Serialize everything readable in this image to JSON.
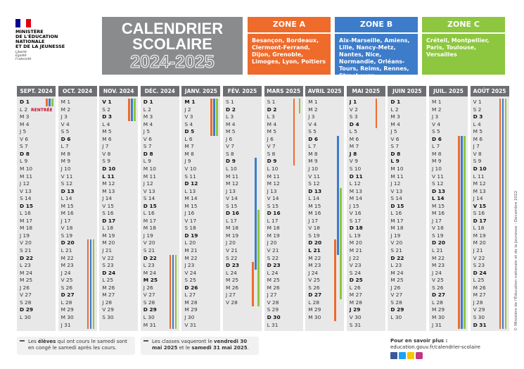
{
  "header": {
    "logo": {
      "lines": [
        "MINISTÈRE",
        "DE L'ÉDUCATION",
        "NATIONALE",
        "ET DE LA JEUNESSE"
      ],
      "motto": [
        "Liberté",
        "Égalité",
        "Fraternité"
      ]
    },
    "title": [
      "CALENDRIER",
      "SCOLAIRE"
    ],
    "year": "2024-2025"
  },
  "zones": [
    {
      "name": "ZONE A",
      "color": "#ee6b2b",
      "cities": "Besançon, Bordeaux, Clermont-Ferrand, Dijon, Grenoble, Limoges, Lyon, Poitiers"
    },
    {
      "name": "ZONE B",
      "color": "#3d7cc9",
      "cities": "Aix-Marseille, Amiens, Lille, Nancy-Metz, Nantes, Nice, Normandie, Orléans-Tours, Reims, Rennes, Strasbourg"
    },
    {
      "name": "ZONE C",
      "color": "#8dc63f",
      "cities": "Créteil, Montpellier, Paris, Toulouse, Versailles"
    }
  ],
  "months": [
    {
      "name": "SEPT. 2024",
      "days": [
        "D 1",
        {
          "text": "L 2",
          "note": "RENTRÉE"
        },
        "M 3",
        "M 4",
        "J 5",
        "V 6",
        "S 7",
        "D 8",
        "L 9",
        "M 10",
        "M 11",
        "J 12",
        "V 13",
        "S 14",
        "D 15",
        "L 16",
        "M 17",
        "M 18",
        "J 19",
        "V 20",
        "S 21",
        "D 22",
        "L 23",
        "M 24",
        "M 25",
        "J 26",
        "V 27",
        "S 28",
        "D 29",
        "L 30"
      ],
      "bars": [
        {
          "zone": 0,
          "from": 1,
          "to": 1
        },
        {
          "zone": 1,
          "from": 1,
          "to": 1
        },
        {
          "zone": 2,
          "from": 1,
          "to": 1
        }
      ]
    },
    {
      "name": "OCT. 2024",
      "days": [
        "M 1",
        "M 2",
        "J 3",
        "V 4",
        "S 5",
        "D 6",
        "L 7",
        "M 8",
        "M 9",
        "J 10",
        "V 11",
        "S 12",
        "D 13",
        "L 14",
        "M 15",
        "M 16",
        "J 17",
        "V 18",
        "S 19",
        "D 20",
        "L 21",
        "M 22",
        "M 23",
        "J 24",
        "V 25",
        "S 26",
        "D 27",
        "L 28",
        "M 29",
        "M 30",
        "J 31"
      ],
      "bars": [
        {
          "zone": 0,
          "from": 20,
          "to": 31
        },
        {
          "zone": 1,
          "from": 20,
          "to": 31
        },
        {
          "zone": 2,
          "from": 20,
          "to": 31
        }
      ]
    },
    {
      "name": "NOV. 2024",
      "days": [
        {
          "text": "V 1",
          "holiday": true
        },
        "S 2",
        "D 3",
        "L 4",
        "M 5",
        "M 6",
        "J 7",
        "V 8",
        "S 9",
        "D 10",
        {
          "text": "L 11",
          "holiday": true
        },
        "M 12",
        "M 13",
        "J 14",
        "V 15",
        "S 16",
        "D 17",
        "L 18",
        "M 19",
        "M 20",
        "J 21",
        "V 22",
        "S 23",
        "D 24",
        "L 25",
        "M 26",
        "M 27",
        "J 28",
        "V 29",
        "S 30"
      ],
      "bars": [
        {
          "zone": 0,
          "from": 1,
          "to": 3
        },
        {
          "zone": 1,
          "from": 1,
          "to": 3
        },
        {
          "zone": 2,
          "from": 1,
          "to": 3
        }
      ]
    },
    {
      "name": "DÉC. 2024",
      "days": [
        "D 1",
        "L 2",
        "M 3",
        "M 4",
        "J 5",
        "V 6",
        "S 7",
        "D 8",
        "L 9",
        "M 10",
        "M 11",
        "J 12",
        "V 13",
        "S 14",
        "D 15",
        "L 16",
        "M 17",
        "M 18",
        "J 19",
        "V 20",
        "S 21",
        "D 22",
        "L 23",
        "M 24",
        {
          "text": "M 25",
          "holiday": true
        },
        "J 26",
        "V 27",
        "S 28",
        "D 29",
        "L 30",
        "M 31"
      ],
      "bars": [
        {
          "zone": 0,
          "from": 22,
          "to": 31
        },
        {
          "zone": 1,
          "from": 22,
          "to": 31
        },
        {
          "zone": 2,
          "from": 22,
          "to": 31
        }
      ]
    },
    {
      "name": "JANV. 2025",
      "days": [
        {
          "text": "M 1",
          "holiday": true
        },
        "J 2",
        "V 3",
        "S 4",
        "D 5",
        "L 6",
        "M 7",
        "M 8",
        "J 9",
        "V 10",
        "S 11",
        "D 12",
        "L 13",
        "M 14",
        "M 15",
        "J 16",
        "V 17",
        "S 18",
        "D 19",
        "L 20",
        "M 21",
        "M 22",
        "J 23",
        "V 24",
        "S 25",
        "D 26",
        "L 27",
        "M 28",
        "M 29",
        "J 30",
        "V 31"
      ],
      "bars": [
        {
          "zone": 0,
          "from": 1,
          "to": 5
        },
        {
          "zone": 1,
          "from": 1,
          "to": 5
        },
        {
          "zone": 2,
          "from": 1,
          "to": 5
        }
      ]
    },
    {
      "name": "FÉV. 2025",
      "days": [
        "S 1",
        "D 2",
        "L 3",
        "M 4",
        "M 5",
        "J 6",
        "V 7",
        "S 8",
        "D 9",
        "L 10",
        "M 11",
        "M 12",
        "J 13",
        "V 14",
        "S 15",
        "D 16",
        "L 17",
        "M 18",
        "M 19",
        "J 20",
        "V 21",
        "S 22",
        "D 23",
        "L 24",
        "M 25",
        "M 26",
        "J 27",
        "V 28"
      ],
      "bars": [
        {
          "zone": 0,
          "from": 23,
          "to": 28
        },
        {
          "zone": 1,
          "from": 9,
          "to": 23
        },
        {
          "zone": 2,
          "from": 16,
          "to": 28
        }
      ]
    },
    {
      "name": "MARS 2025",
      "days": [
        "S 1",
        "D 2",
        "L 3",
        "M 4",
        "M 5",
        "J 6",
        "V 7",
        "S 8",
        "D 9",
        "L 10",
        "M 11",
        "M 12",
        "J 13",
        "V 14",
        "S 15",
        "D 16",
        "L 17",
        "M 18",
        "M 19",
        "J 20",
        "V 21",
        "S 22",
        "D 23",
        "L 24",
        "M 25",
        "M 26",
        "J 27",
        "V 28",
        "S 29",
        "D 30",
        "L 31"
      ],
      "bars": [
        {
          "zone": 0,
          "from": 1,
          "to": 9
        },
        {
          "zone": 2,
          "from": 1,
          "to": 2
        }
      ]
    },
    {
      "name": "AVRIL 2025",
      "days": [
        "M 1",
        "M 2",
        "J 3",
        "V 4",
        "S 5",
        "D 6",
        "L 7",
        "M 8",
        "M 9",
        "J 10",
        "V 11",
        "S 12",
        "D 13",
        "L 14",
        "M 15",
        "M 16",
        "J 17",
        "V 18",
        "S 19",
        "D 20",
        {
          "text": "L 21",
          "holiday": true
        },
        "M 22",
        "M 23",
        "J 24",
        "V 25",
        "S 26",
        "D 27",
        "L 28",
        "M 29",
        "M 30"
      ],
      "bars": [
        {
          "zone": 0,
          "from": 20,
          "to": 30
        },
        {
          "zone": 1,
          "from": 6,
          "to": 21
        },
        {
          "zone": 2,
          "from": 13,
          "to": 27
        }
      ]
    },
    {
      "name": "MAI 2025",
      "days": [
        {
          "text": "J 1",
          "holiday": true
        },
        "V 2",
        "S 3",
        "D 4",
        "L 5",
        "M 6",
        "M 7",
        {
          "text": "J 8",
          "holiday": true
        },
        "V 9",
        "S 10",
        "D 11",
        "L 12",
        "M 13",
        "M 14",
        "J 15",
        "V 16",
        "S 17",
        "D 18",
        "L 19",
        "M 20",
        "M 21",
        "J 22",
        "V 23",
        "S 24",
        "D 25",
        "L 26",
        "M 27",
        "M 28",
        {
          "text": "J 29",
          "holiday": true
        },
        "V 30",
        "S 31"
      ],
      "bars": [
        {
          "zone": 0,
          "from": 1,
          "to": 4
        }
      ]
    },
    {
      "name": "JUIN 2025",
      "days": [
        "D 1",
        "L 2",
        "M 3",
        "M 4",
        "J 5",
        "V 6",
        "S 7",
        "D 8",
        {
          "text": "L 9",
          "holiday": true
        },
        "M 10",
        "M 11",
        "J 12",
        "V 13",
        "S 14",
        "D 15",
        "L 16",
        "M 17",
        "M 18",
        "J 19",
        "V 20",
        "S 21",
        "D 22",
        "L 23",
        "M 24",
        "M 25",
        "J 26",
        "V 27",
        "S 28",
        "D 29",
        "L 30"
      ],
      "bars": []
    },
    {
      "name": "JUIL. 2025",
      "days": [
        "M 1",
        "M 2",
        "J 3",
        "V 4",
        "S 5",
        "D 6",
        "L 7",
        "M 8",
        "M 9",
        "J 10",
        "V 11",
        "S 12",
        "D 13",
        {
          "text": "L 14",
          "holiday": true
        },
        "M 15",
        "M 16",
        "J 17",
        "V 18",
        "S 19",
        "D 20",
        "L 21",
        "M 22",
        "M 23",
        "J 24",
        "V 25",
        "S 26",
        "D 27",
        "L 28",
        "M 29",
        "M 30",
        "J 31"
      ],
      "bars": [
        {
          "zone": 0,
          "from": 6,
          "to": 31
        },
        {
          "zone": 1,
          "from": 6,
          "to": 31
        },
        {
          "zone": 2,
          "from": 6,
          "to": 31
        }
      ]
    },
    {
      "name": "AOÛT 2025",
      "days": [
        "V 1",
        "S 2",
        "D 3",
        "L 4",
        "M 5",
        "M 6",
        "J 7",
        "V 8",
        "S 9",
        "D 10",
        "L 11",
        "M 12",
        "M 13",
        "J 14",
        {
          "text": "V 15",
          "holiday": true
        },
        "S 16",
        "D 17",
        "L 18",
        "M 19",
        "M 20",
        "J 21",
        "V 22",
        "S 23",
        "D 24",
        "L 25",
        "M 26",
        "M 27",
        "J 28",
        "V 29",
        "S 30",
        "D 31"
      ],
      "bars": [
        {
          "zone": 0,
          "from": 1,
          "to": 31
        },
        {
          "zone": 1,
          "from": 1,
          "to": 31
        },
        {
          "zone": 2,
          "from": 1,
          "to": 31
        }
      ]
    }
  ],
  "notes": [
    [
      "Les ",
      "élèves",
      " qui ont cours le samedi sont en congé le samedi après les cours."
    ],
    [
      "Les classes vaqueront le ",
      "vendredi 30 mai 2025",
      " et le ",
      "samedi 31 mai 2025",
      "."
    ]
  ],
  "more": {
    "label": "Pour en savoir plus :",
    "url": "education.gouv.fr/calendrier-scolaire"
  },
  "copyright": "© Ministère de l'Éducation nationale et de la Jeunesse - Décembre 2022"
}
